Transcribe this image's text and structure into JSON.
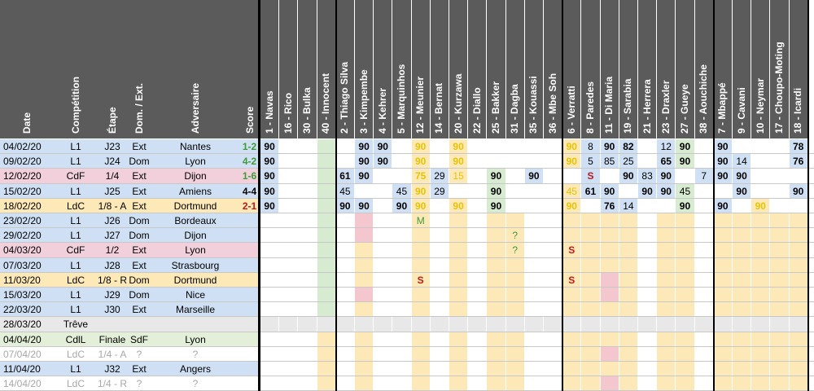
{
  "headers": {
    "date": "Date",
    "competition": "Compétition",
    "stage": "Étape",
    "homeaway": "Dom. / Ext.",
    "opponent": "Adversaire",
    "score": "Score"
  },
  "players": [
    {
      "num": "1",
      "name": "Navas"
    },
    {
      "num": "16",
      "name": "Rico"
    },
    {
      "num": "30",
      "name": "Bulka"
    },
    {
      "num": "40",
      "name": "Innocent"
    },
    {
      "num": "2",
      "name": "Thiago Silva"
    },
    {
      "num": "3",
      "name": "Kimpembe"
    },
    {
      "num": "4",
      "name": "Kehrer"
    },
    {
      "num": "5",
      "name": "Marquinhos"
    },
    {
      "num": "12",
      "name": "Meunier"
    },
    {
      "num": "14",
      "name": "Bernat"
    },
    {
      "num": "20",
      "name": "Kurzawa"
    },
    {
      "num": "22",
      "name": "Diallo"
    },
    {
      "num": "25",
      "name": "Bakker"
    },
    {
      "num": "31",
      "name": "Dagba"
    },
    {
      "num": "35",
      "name": "Kouassi"
    },
    {
      "num": "36",
      "name": "Mbe Soh"
    },
    {
      "num": "6",
      "name": "Verratti"
    },
    {
      "num": "8",
      "name": "Paredes"
    },
    {
      "num": "11",
      "name": "Di Maria"
    },
    {
      "num": "19",
      "name": "Sarabia"
    },
    {
      "num": "21",
      "name": "Herrera"
    },
    {
      "num": "23",
      "name": "Draxler"
    },
    {
      "num": "27",
      "name": "Gueye"
    },
    {
      "num": "38",
      "name": "Aouchiche"
    },
    {
      "num": "7",
      "name": "Mbappé"
    },
    {
      "num": "9",
      "name": "Cavani"
    },
    {
      "num": "10",
      "name": "Neymar"
    },
    {
      "num": "17",
      "name": "Choupo-Moting"
    },
    {
      "num": "18",
      "name": "Icardi"
    }
  ],
  "matches": [
    {
      "date": "04/02/20",
      "comp": "L1",
      "stage": "J23",
      "ha": "Ext",
      "opp": "Nantes",
      "score": "1-2",
      "res": "w",
      "grey": false,
      "vals": {
        "0": "90",
        "5": "90",
        "6": "90",
        "8": "90",
        "10": "90",
        "16": "90",
        "17": "8",
        "18": "90",
        "19": "82",
        "21": "12",
        "22": "90",
        "24": "90",
        "28": "78"
      }
    },
    {
      "date": "09/02/20",
      "comp": "L1",
      "stage": "J24",
      "ha": "Dom",
      "opp": "Lyon",
      "score": "4-2",
      "res": "w",
      "grey": false,
      "vals": {
        "0": "90",
        "5": "90",
        "6": "90",
        "8": "90",
        "10": "90",
        "16": "90",
        "17": "5",
        "18": "85",
        "19": "25",
        "21": "65",
        "22": "90",
        "24": "90",
        "25": "14",
        "28": "76"
      }
    },
    {
      "date": "12/02/20",
      "comp": "CdF",
      "stage": "1/4",
      "ha": "Ext",
      "opp": "Dijon",
      "score": "1-6",
      "res": "w",
      "grey": false,
      "vals": {
        "0": "90",
        "4": "61",
        "5": "90",
        "8": "75",
        "9": "29",
        "10": "15",
        "12": "90",
        "14": "90",
        "17": "S",
        "19": "90",
        "20": "83",
        "21": "90",
        "23": "7",
        "24": "90",
        "25": "90"
      }
    },
    {
      "date": "15/02/20",
      "comp": "L1",
      "stage": "J25",
      "ha": "Ext",
      "opp": "Amiens",
      "score": "4-4",
      "res": "d",
      "grey": false,
      "vals": {
        "0": "90",
        "4": "45",
        "7": "45",
        "8": "90",
        "9": "29",
        "12": "90",
        "16": "45",
        "17": "61",
        "18": "90",
        "20": "90",
        "21": "90",
        "22": "45",
        "25": "90",
        "28": "90"
      }
    },
    {
      "date": "18/02/20",
      "comp": "LdC",
      "stage": "1/8 - A",
      "ha": "Ext",
      "opp": "Dortmund",
      "score": "2-1",
      "res": "l",
      "grey": false,
      "vals": {
        "0": "90",
        "4": "90",
        "5": "90",
        "7": "90",
        "8": "90",
        "10": "90",
        "12": "90",
        "16": "90",
        "18": "76",
        "19": "14",
        "22": "90",
        "24": "90",
        "26": "90"
      }
    },
    {
      "date": "23/02/20",
      "comp": "L1",
      "stage": "J26",
      "ha": "Dom",
      "opp": "Bordeaux",
      "score": "",
      "res": "",
      "grey": false,
      "vals": {
        "8": "M"
      }
    },
    {
      "date": "29/02/20",
      "comp": "L1",
      "stage": "J27",
      "ha": "Dom",
      "opp": "Dijon",
      "score": "",
      "res": "",
      "grey": false,
      "vals": {
        "13": "?"
      }
    },
    {
      "date": "04/03/20",
      "comp": "CdF",
      "stage": "1/2",
      "ha": "Ext",
      "opp": "Lyon",
      "score": "",
      "res": "",
      "grey": false,
      "vals": {
        "13": "?",
        "16": "S"
      }
    },
    {
      "date": "07/03/20",
      "comp": "L1",
      "stage": "J28",
      "ha": "Ext",
      "opp": "Strasbourg",
      "score": "",
      "res": "",
      "grey": false,
      "vals": {}
    },
    {
      "date": "11/03/20",
      "comp": "LdC",
      "stage": "1/8 - R",
      "ha": "Dom",
      "opp": "Dortmund",
      "score": "",
      "res": "",
      "grey": false,
      "vals": {
        "8": "S",
        "16": "S"
      }
    },
    {
      "date": "15/03/20",
      "comp": "L1",
      "stage": "J29",
      "ha": "Dom",
      "opp": "Nice",
      "score": "",
      "res": "",
      "grey": false,
      "vals": {}
    },
    {
      "date": "22/03/20",
      "comp": "L1",
      "stage": "J30",
      "ha": "Ext",
      "opp": "Marseille",
      "score": "",
      "res": "",
      "grey": false,
      "vals": {}
    },
    {
      "date": "28/03/20",
      "comp": "Trêve",
      "stage": "",
      "ha": "",
      "opp": "",
      "score": "",
      "res": "",
      "grey": false,
      "vals": {}
    },
    {
      "date": "04/04/20",
      "comp": "CdlL",
      "stage": "Finale",
      "ha": "SdF",
      "opp": "Lyon",
      "score": "",
      "res": "",
      "grey": false,
      "vals": {}
    },
    {
      "date": "07/04/20",
      "comp": "LdC",
      "stage": "1/4 - A",
      "ha": "?",
      "opp": "?",
      "score": "",
      "res": "",
      "grey": true,
      "vals": {}
    },
    {
      "date": "11/04/20",
      "comp": "L1",
      "stage": "J32",
      "ha": "Ext",
      "opp": "Angers",
      "score": "",
      "res": "",
      "grey": false,
      "vals": {}
    },
    {
      "date": "14/04/20",
      "comp": "LdC",
      "stage": "1/4 - R",
      "ha": "?",
      "opp": "?",
      "score": "",
      "res": "",
      "grey": true,
      "vals": {}
    }
  ],
  "colors": {
    "header": "#5b5b5b",
    "l1": "#cfe0f4",
    "cdf": "#f1d0dc",
    "ldc": "#fde9b8",
    "trev": "#e8e8e8",
    "cdll": "#e3efd8",
    "play_blue": "#cfe0f4",
    "play_green": "#d7ebd0",
    "play_yellow": "#fde9b8",
    "play_pink": "#f4c7cf",
    "win": "#3f9a3a",
    "draw": "#000000",
    "loss": "#c0181b",
    "val_yellow": "#e8c300",
    "sus": "#c0181b",
    "q": "#3f9a3a"
  }
}
